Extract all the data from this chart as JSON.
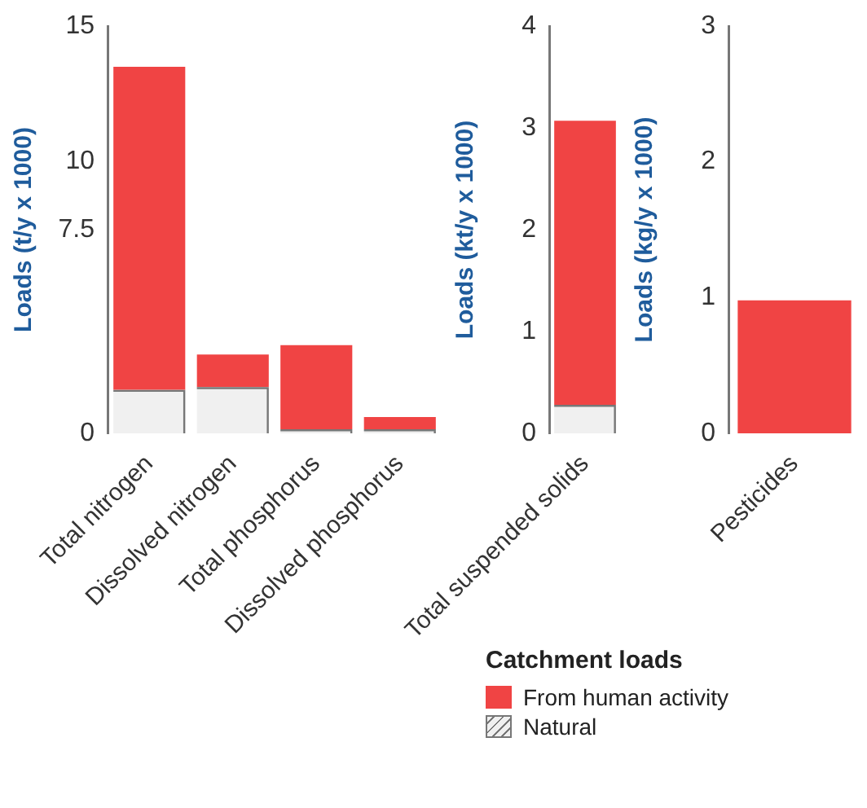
{
  "chart_data": [
    {
      "type": "bar",
      "stacked": true,
      "ylabel": "Loads (t/y x 1000)",
      "categories": [
        "Total nitrogen",
        "Dissolved nitrogen",
        "Total phosphorus",
        "Dissolved phosphorus"
      ],
      "ylim": [
        0,
        15
      ],
      "yticks": [
        0,
        7.5,
        10,
        15
      ],
      "grid": false,
      "legend": "bottom",
      "legend_title": "Catchment loads",
      "series": [
        {
          "name": "Natural",
          "color": "#f0f0f0",
          "values": [
            1.6,
            1.7,
            0.15,
            0.15
          ]
        },
        {
          "name": "From human activity",
          "color": "#f04444",
          "values": [
            11.9,
            1.2,
            3.1,
            0.45
          ]
        }
      ]
    },
    {
      "type": "bar",
      "stacked": true,
      "ylabel": "Loads (kt/y x 1000)",
      "categories": [
        "Total suspended solids"
      ],
      "ylim": [
        0,
        4
      ],
      "yticks": [
        0,
        1,
        2,
        3,
        4
      ],
      "grid": false,
      "series": [
        {
          "color": "#f0f0f0",
          "values": [
            0.28
          ]
        },
        {
          "color": "#f04444",
          "values": [
            2.79
          ]
        }
      ]
    },
    {
      "type": "bar",
      "stacked": true,
      "ylabel": "Loads (kg/y x 1000)",
      "categories": [
        "Pesticides"
      ],
      "ylim": [
        0,
        3
      ],
      "yticks": [
        0,
        1,
        2,
        3
      ],
      "grid": false,
      "series": [
        {
          "color": "#f0f0f0",
          "values": [
            0
          ]
        },
        {
          "color": "#f04444",
          "values": [
            0.98
          ]
        }
      ]
    }
  ]
}
